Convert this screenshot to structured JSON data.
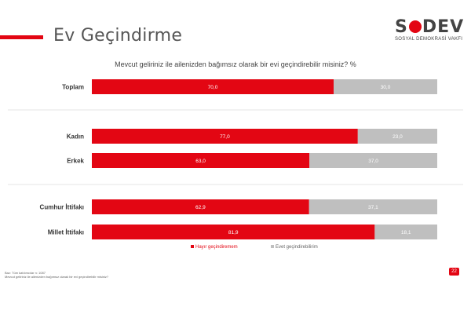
{
  "header": {
    "title": "Ev Geçindirme",
    "logo_text": "SODEV",
    "logo_subtext": "SOSYAL DEMOKRASİ VAKFI"
  },
  "chart_data": {
    "type": "bar",
    "orientation": "horizontal",
    "stacked": true,
    "title": "Mevcut geliriniz ile ailenizden bağımsız olarak bir evi geçindirebilir misiniz? %",
    "categories": [
      "Toplam",
      "Kadın",
      "Erkek",
      "Cumhur İttifakı",
      "Millet İttifakı"
    ],
    "series": [
      {
        "name": "Hayır geçindiremem",
        "color": "#e30613",
        "values": [
          70.0,
          77.0,
          63.0,
          62.9,
          81.9
        ],
        "labels": [
          "70,0",
          "77,0",
          "63,0",
          "62,9",
          "81,9"
        ]
      },
      {
        "name": "Evet geçindirebilirim",
        "color": "#bfbfbf",
        "values": [
          30.0,
          23.0,
          37.0,
          37.1,
          18.1
        ],
        "labels": [
          "30,0",
          "23,0",
          "37,0",
          "37,1",
          "18,1"
        ]
      }
    ],
    "xlim": [
      0,
      100
    ],
    "legend_position": "bottom",
    "grid": false
  },
  "footnote": {
    "line1": "Baz: Tüm katılımcılar n: 1087",
    "line2": "Mevcut geliriniz ile ailenizden bağımsız olarak bir evi geçindirebilir misiniz?"
  },
  "page_number": "22"
}
